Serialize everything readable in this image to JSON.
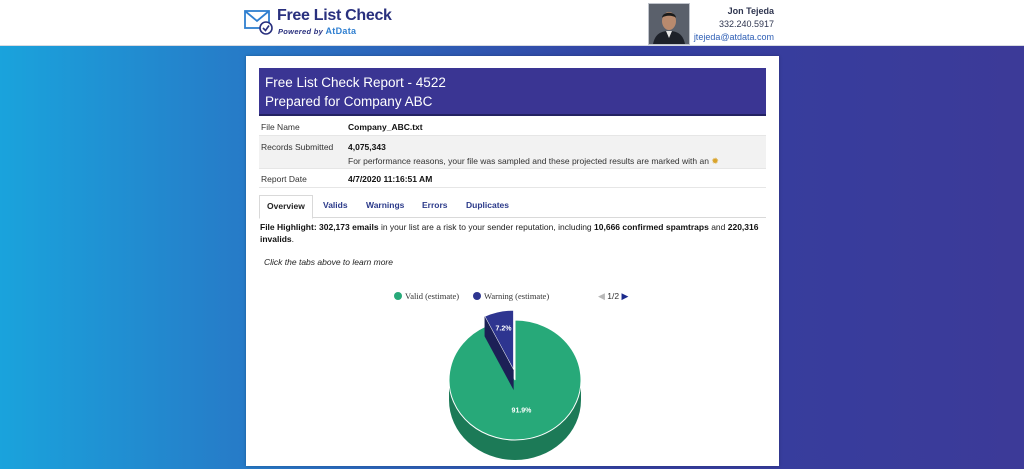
{
  "header": {
    "logo_title": "Free List Check",
    "logo_powered": "Powered by",
    "logo_brand": "AtData",
    "contact_name": "Jon Tejeda",
    "contact_phone": "332.240.5917",
    "contact_email": "jtejeda@atdata.com"
  },
  "report": {
    "title_line1": "Free List Check Report - 4522",
    "title_line2": "Prepared for Company ABC",
    "rows": [
      {
        "label": "File Name",
        "value": "Company_ABC.txt"
      },
      {
        "label": "Records Submitted",
        "value": "4,075,343",
        "note": "For performance reasons, your file was sampled and these projected results are marked with an"
      },
      {
        "label": "Report Date",
        "value": "4/7/2020 11:16:51 AM"
      }
    ]
  },
  "tabs": [
    {
      "label": "Overview",
      "active": true
    },
    {
      "label": "Valids",
      "active": false
    },
    {
      "label": "Warnings",
      "active": false
    },
    {
      "label": "Errors",
      "active": false
    },
    {
      "label": "Duplicates",
      "active": false
    }
  ],
  "highlight": {
    "lead": "File Highlight: 302,173 emails",
    "text1": " in your list are a risk to your sender reputation, including ",
    "spamtraps": "10,666 confirmed spamtraps",
    "text2": " and ",
    "invalids": "220,316 invalids",
    "end": "."
  },
  "learn_more": "Click the tabs above to learn more",
  "chart_data": {
    "type": "pie",
    "series": [
      {
        "name": "Valid (estimate)",
        "value": 91.9,
        "label": "91.9%",
        "color": "#27a979"
      },
      {
        "name": "Warning (estimate)",
        "value": 7.2,
        "label": "7.2%",
        "color": "#2e3590"
      }
    ],
    "legend_position": "top",
    "pager": "1/2"
  },
  "icons": {
    "logo": "envelope-check-icon",
    "sampled_marker": "sunburst-icon",
    "pager_prev": "triangle-left-icon",
    "pager_next": "triangle-right-icon"
  }
}
